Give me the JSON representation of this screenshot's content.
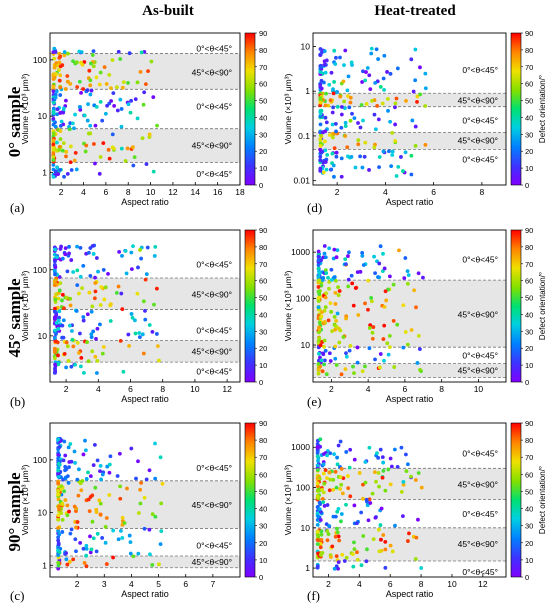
{
  "headers": {
    "col1": "As-built",
    "col2": "Heat-treated"
  },
  "row_labels": [
    "0° sample",
    "45° sample",
    "90° sample"
  ],
  "colorbar": {
    "label": "Defect orientation/°",
    "ticks": [
      "0",
      "10",
      "20",
      "30",
      "40",
      "50",
      "60",
      "70",
      "80",
      "90"
    ],
    "colors": [
      "#8000ff",
      "#3c3cff",
      "#0090ff",
      "#00d0d0",
      "#00e070",
      "#70e000",
      "#e0e000",
      "#ffa000",
      "#ff4000",
      "#ff0000"
    ]
  },
  "band_labels": {
    "low": "0°<θ<45°",
    "high": "45°<θ<90°"
  },
  "axis": {
    "xlabel": "Aspect ratio",
    "ylabel": "Volume (×10³ μm³)"
  },
  "chart_data": [
    {
      "id": "a",
      "type": "scatter",
      "ylog": true,
      "xlim": [
        1,
        18
      ],
      "ylim": [
        0.6,
        300
      ],
      "xticks": [
        "2",
        "4",
        "6",
        "8",
        "10",
        "12",
        "14",
        "16",
        "18"
      ],
      "xtickvals": [
        2,
        4,
        6,
        8,
        10,
        12,
        14,
        16,
        18
      ],
      "yticks": [
        "1",
        "10",
        "100"
      ],
      "ytickvals": [
        1,
        10,
        100
      ],
      "bands": [
        [
          1.5,
          6
        ],
        [
          30,
          130
        ]
      ],
      "band_texts": [
        [
          "0°<θ<45°",
          0.95
        ],
        [
          "45°<θ<90°",
          3
        ],
        [
          "0°<θ<45°",
          15
        ],
        [
          "45°<θ<90°",
          60
        ],
        [
          "0°<θ<45°",
          160
        ]
      ]
    },
    {
      "id": "b",
      "type": "scatter",
      "ylog": true,
      "xlim": [
        1,
        12.8
      ],
      "ylim": [
        2,
        400
      ],
      "xticks": [
        "2",
        "4",
        "6",
        "8",
        "10",
        "12"
      ],
      "xtickvals": [
        2,
        4,
        6,
        8,
        10,
        12
      ],
      "yticks": [
        "10",
        "100"
      ],
      "ytickvals": [
        10,
        100
      ],
      "bands": [
        [
          4,
          8.5
        ],
        [
          25,
          75
        ]
      ],
      "band_texts": [
        [
          "0°<θ<45°",
          2.9
        ],
        [
          "45°<θ<90°",
          5.8
        ],
        [
          "0°<θ<45°",
          12
        ],
        [
          "45°<θ<90°",
          42
        ],
        [
          "0°<θ<45°",
          120
        ]
      ]
    },
    {
      "id": "c",
      "type": "scatter",
      "ylog": true,
      "xlim": [
        1,
        8
      ],
      "ylim": [
        0.6,
        500
      ],
      "xticks": [
        "2",
        "3",
        "4",
        "5",
        "6",
        "7"
      ],
      "xtickvals": [
        2,
        3,
        4,
        5,
        6,
        7
      ],
      "yticks": [
        "1",
        "10",
        "100"
      ],
      "ytickvals": [
        1,
        10,
        100
      ],
      "bands": [
        [
          0.9,
          1.5
        ],
        [
          5,
          40
        ]
      ],
      "band_texts": [
        [
          "45°<θ<90°",
          1.15
        ],
        [
          "0°<θ<45°",
          2.4
        ],
        [
          "45°<θ<90°",
          14
        ],
        [
          "0°<θ<45°",
          70
        ]
      ]
    },
    {
      "id": "d",
      "type": "scatter",
      "ylog": true,
      "xlim": [
        1,
        9
      ],
      "ylim": [
        0.008,
        20
      ],
      "xticks": [
        "2",
        "4",
        "6",
        "8"
      ],
      "xtickvals": [
        2,
        4,
        6,
        8
      ],
      "yticks": [
        "0.01",
        "0.1",
        "1",
        "10"
      ],
      "ytickvals": [
        0.01,
        0.1,
        1,
        10
      ],
      "bands": [
        [
          0.05,
          0.12
        ],
        [
          0.45,
          0.9
        ]
      ],
      "band_texts": [
        [
          "0°<θ<45°",
          0.03
        ],
        [
          "45°<θ<90°",
          0.08
        ],
        [
          "0°<θ<45°",
          0.22
        ],
        [
          "45°<θ<90°",
          0.62
        ],
        [
          "0°<θ<45°",
          3
        ]
      ]
    },
    {
      "id": "e",
      "type": "scatter",
      "ylog": true,
      "xlim": [
        1,
        11.5
      ],
      "ylim": [
        1.6,
        3000
      ],
      "xticks": [
        "2",
        "4",
        "6",
        "8",
        "10"
      ],
      "xtickvals": [
        2,
        4,
        6,
        8,
        10
      ],
      "yticks": [
        "10",
        "100",
        "1000"
      ],
      "ytickvals": [
        10,
        100,
        1000
      ],
      "bands": [
        [
          2,
          4
        ],
        [
          9,
          250
        ]
      ],
      "band_texts": [
        [
          "45°<θ<90°",
          2.8
        ],
        [
          "0°<θ<45°",
          6
        ],
        [
          "45°<θ<90°",
          45
        ],
        [
          "0°<θ<45°",
          700
        ]
      ]
    },
    {
      "id": "f",
      "type": "scatter",
      "ylog": true,
      "xlim": [
        1,
        13.5
      ],
      "ylim": [
        0.6,
        4000
      ],
      "xticks": [
        "2",
        "4",
        "6",
        "8",
        "10",
        "12"
      ],
      "xtickvals": [
        2,
        4,
        6,
        8,
        10,
        12
      ],
      "yticks": [
        "1",
        "10",
        "100",
        "1000"
      ],
      "ytickvals": [
        1,
        10,
        100,
        1000
      ],
      "bands": [
        [
          1.5,
          10
        ],
        [
          50,
          300
        ]
      ],
      "band_texts": [
        [
          "0°<θ<45°",
          0.8
        ],
        [
          "45°<θ<90°",
          4
        ],
        [
          "0°<θ<45°",
          22
        ],
        [
          "45°<θ<90°",
          120
        ],
        [
          "0°<θ<45°",
          700
        ]
      ]
    }
  ],
  "panel_letters": [
    "(a)",
    "(b)",
    "(c)",
    "(d)",
    "(e)",
    "(f)"
  ]
}
